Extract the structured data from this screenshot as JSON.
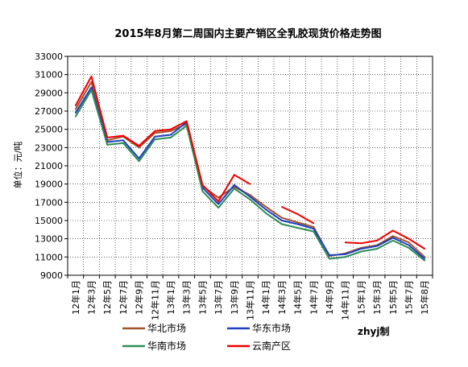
{
  "chart_data": {
    "type": "line",
    "title": "2015年8月第二周国内主要产销区全乳胶现货价格走势图",
    "ylabel": "单位：元/吨",
    "xlabel": "",
    "ylim": [
      9000,
      33000
    ],
    "yticks": [
      9000,
      11000,
      13000,
      15000,
      17000,
      19000,
      21000,
      23000,
      25000,
      27000,
      29000,
      31000,
      33000
    ],
    "grid": true,
    "legend_position": "bottom",
    "watermark": "zhyj制",
    "x": [
      "12年1月",
      "12年3月",
      "12年5月",
      "12年7月",
      "12年9月",
      "12年11月",
      "13年1月",
      "13年3月",
      "13年5月",
      "13年7月",
      "13年9月",
      "13年11月",
      "14年1月",
      "14年3月",
      "14年5月",
      "14年7月",
      "14年9月",
      "14年11月",
      "15年1月",
      "15年3月",
      "15年5月",
      "15年7月",
      "15年8月"
    ],
    "series": [
      {
        "name": "华北市场",
        "color": "#a0522d",
        "values": [
          27200,
          30200,
          23800,
          24200,
          23000,
          24600,
          24800,
          25600,
          18800,
          17500,
          18700,
          17800,
          16500,
          15300,
          14800,
          14300,
          11100,
          11400,
          12000,
          12300,
          13300,
          12600,
          11000
        ]
      },
      {
        "name": "华东市场",
        "color": "#1f3fbf",
        "values": [
          26800,
          29600,
          23600,
          23800,
          21800,
          24200,
          24400,
          25800,
          18600,
          16800,
          18900,
          17600,
          16200,
          15000,
          14600,
          14100,
          11200,
          11300,
          11900,
          12200,
          13100,
          12300,
          10800
        ]
      },
      {
        "name": "华南市场",
        "color": "#2e8b57",
        "values": [
          26400,
          29300,
          23300,
          23500,
          21500,
          23900,
          24100,
          25400,
          18200,
          16400,
          18500,
          17300,
          15800,
          14600,
          14200,
          13800,
          10800,
          11000,
          11600,
          11900,
          12800,
          12000,
          10600
        ]
      },
      {
        "name": "云南产区",
        "color": "#ee0000",
        "values": [
          27600,
          30800,
          24100,
          24300,
          23200,
          24800,
          25000,
          25900,
          18900,
          17100,
          20000,
          19000,
          null,
          16500,
          15700,
          14700,
          null,
          12600,
          12500,
          12800,
          13900,
          13000,
          11900
        ]
      }
    ]
  }
}
